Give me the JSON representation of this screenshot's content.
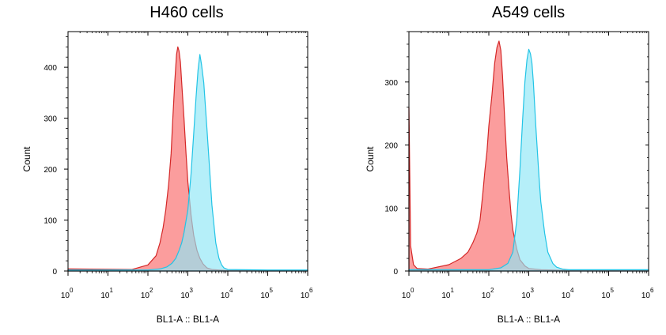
{
  "chart_data": [
    {
      "type": "area",
      "title": "H460 cells",
      "xlabel": "BL1-A :: BL1-A",
      "ylabel": "Count",
      "x_scale": "log",
      "xlim": [
        1,
        1000000
      ],
      "ylim": [
        0,
        470
      ],
      "x_ticks": [
        1,
        10,
        100,
        1000,
        10000,
        100000,
        1000000
      ],
      "x_tick_labels": [
        {
          "base": "10",
          "exp": "0"
        },
        {
          "base": "10",
          "exp": "1"
        },
        {
          "base": "10",
          "exp": "2"
        },
        {
          "base": "10",
          "exp": "3"
        },
        {
          "base": "10",
          "exp": "4"
        },
        {
          "base": "10",
          "exp": "5"
        },
        {
          "base": "10",
          "exp": "6"
        }
      ],
      "y_ticks": [
        0,
        100,
        200,
        300,
        400
      ],
      "y_tick_labels": [
        "0",
        "100",
        "200",
        "300",
        "400"
      ],
      "grid": false,
      "series": [
        {
          "color": "#fa8c8c",
          "stroke": "#d42828",
          "x": [
            1,
            40,
            100,
            160,
            200,
            240,
            280,
            330,
            380,
            420,
            470,
            520,
            560,
            600,
            650,
            700,
            800,
            900,
            1000,
            1200,
            1400,
            1700,
            2000,
            2400,
            3000,
            4000,
            6000,
            10000,
            100000,
            1000000
          ],
          "y": [
            4,
            3,
            12,
            30,
            55,
            85,
            120,
            170,
            230,
            300,
            370,
            425,
            440,
            432,
            410,
            370,
            300,
            230,
            175,
            110,
            70,
            40,
            25,
            14,
            6,
            3,
            2,
            1,
            1,
            1
          ]
        },
        {
          "color": "#8ee6f6",
          "stroke": "#22c4e6",
          "x": [
            1,
            100,
            200,
            300,
            400,
            500,
            600,
            700,
            800,
            1000,
            1200,
            1400,
            1600,
            1800,
            2000,
            2200,
            2500,
            3000,
            3500,
            4000,
            5000,
            6000,
            7000,
            8000,
            10000,
            100000,
            1000000
          ],
          "y": [
            2,
            2,
            4,
            8,
            15,
            25,
            40,
            55,
            75,
            120,
            190,
            270,
            340,
            395,
            425,
            405,
            370,
            280,
            200,
            130,
            55,
            25,
            12,
            6,
            3,
            2,
            2
          ]
        }
      ]
    },
    {
      "type": "area",
      "title": "A549 cells",
      "xlabel": "BL1-A :: BL1-A",
      "ylabel": "Count",
      "x_scale": "log",
      "xlim": [
        1,
        1000000
      ],
      "ylim": [
        0,
        380
      ],
      "x_ticks": [
        1,
        10,
        100,
        1000,
        10000,
        100000,
        1000000
      ],
      "x_tick_labels": [
        {
          "base": "10",
          "exp": "0"
        },
        {
          "base": "10",
          "exp": "1"
        },
        {
          "base": "10",
          "exp": "2"
        },
        {
          "base": "10",
          "exp": "3"
        },
        {
          "base": "10",
          "exp": "4"
        },
        {
          "base": "10",
          "exp": "5"
        },
        {
          "base": "10",
          "exp": "6"
        }
      ],
      "y_ticks": [
        0,
        100,
        200,
        300
      ],
      "y_tick_labels": [
        "0",
        "100",
        "200",
        "300"
      ],
      "grid": false,
      "series": [
        {
          "color": "#fa8c8c",
          "stroke": "#d42828",
          "x": [
            1,
            1.05,
            1.1,
            1.3,
            1.6,
            3,
            10,
            20,
            30,
            40,
            50,
            60,
            70,
            80,
            90,
            100,
            120,
            140,
            160,
            180,
            200,
            220,
            250,
            280,
            320,
            360,
            400,
            500,
            600,
            800,
            1000,
            2000,
            10000,
            1000000
          ],
          "y": [
            260,
            150,
            40,
            10,
            4,
            3,
            10,
            20,
            30,
            45,
            60,
            80,
            120,
            160,
            190,
            230,
            280,
            330,
            355,
            365,
            350,
            310,
            240,
            180,
            130,
            90,
            65,
            35,
            18,
            8,
            4,
            2,
            1,
            1
          ]
        },
        {
          "color": "#8ee6f6",
          "stroke": "#22c4e6",
          "x": [
            1,
            100,
            200,
            300,
            400,
            500,
            600,
            700,
            800,
            900,
            1000,
            1100,
            1200,
            1300,
            1500,
            1800,
            2000,
            2500,
            3000,
            4000,
            5000,
            7000,
            10000,
            1000000
          ],
          "y": [
            2,
            2,
            5,
            12,
            30,
            80,
            160,
            240,
            300,
            335,
            352,
            345,
            330,
            300,
            230,
            150,
            110,
            60,
            30,
            12,
            6,
            3,
            2,
            2
          ]
        }
      ]
    }
  ]
}
